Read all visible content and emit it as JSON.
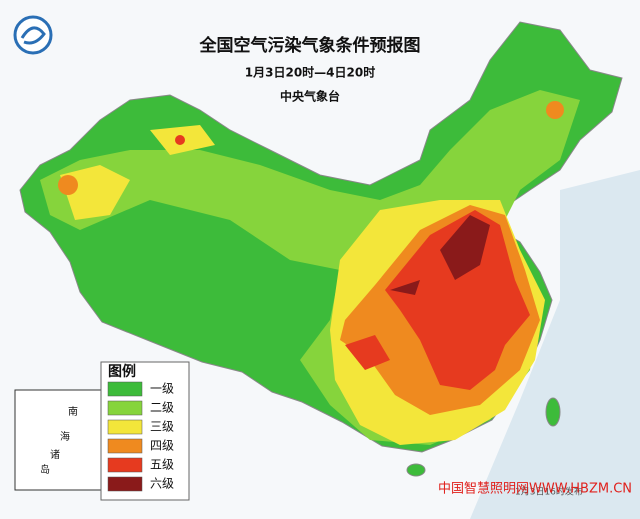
{
  "header": {
    "title": "全国空气污染气象条件预报图",
    "time_range": "1月3日20时—4日20时",
    "issuer": "中央气象台"
  },
  "legend": {
    "title": "图例",
    "items": [
      {
        "label": "一级",
        "color": "#3dbb3a"
      },
      {
        "label": "二级",
        "color": "#86d43c"
      },
      {
        "label": "三级",
        "color": "#f3e63a"
      },
      {
        "label": "四级",
        "color": "#ef8a1f"
      },
      {
        "label": "五级",
        "color": "#e63a1f"
      },
      {
        "label": "六级",
        "color": "#8a1a1a"
      }
    ]
  },
  "inset": {
    "labels": [
      "南",
      "海",
      "诸",
      "岛"
    ]
  },
  "issue_time": "1月3日16时发布",
  "watermark": "中国智慧照明网WWW.HBZM.CN"
}
